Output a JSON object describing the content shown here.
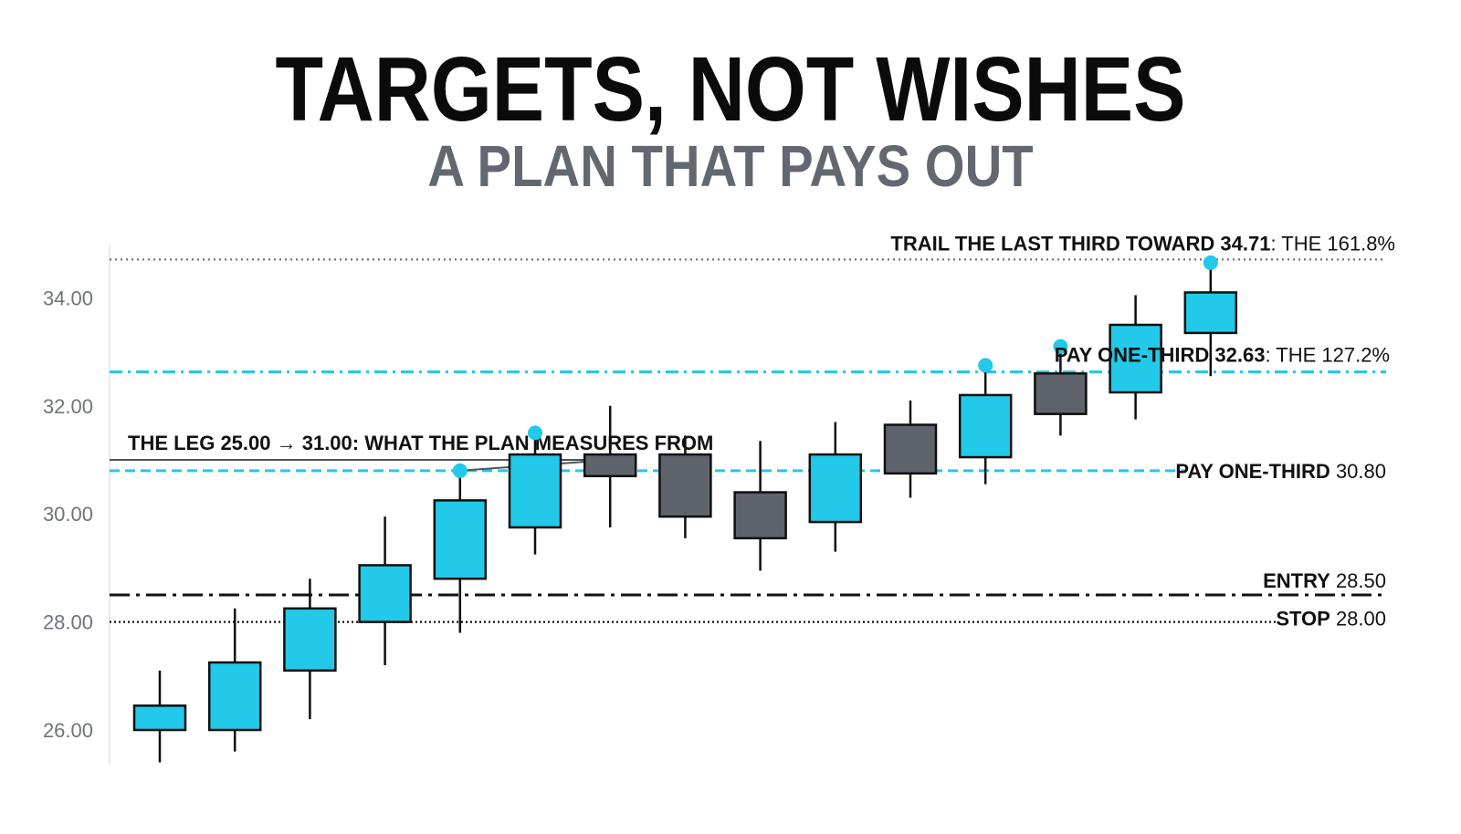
{
  "header": {
    "title": "TARGETS, NOT WISHES",
    "subtitle": "A PLAN THAT PAYS OUT"
  },
  "colors": {
    "up": "#22c9e8",
    "down": "#5f636b",
    "outline": "#0f0f0f",
    "target": "#22c9e8",
    "text": "#111111",
    "tick": "#6f737a"
  },
  "chart_data": {
    "type": "candlestick",
    "y_ticks": [
      "26.00",
      "28.00",
      "30.00",
      "32.00",
      "34.00"
    ],
    "ylim": [
      25.5,
      35.0
    ],
    "grid": false,
    "candles": [
      {
        "o": 26.0,
        "h": 27.1,
        "l": 25.4,
        "c": 26.45,
        "dir": "up"
      },
      {
        "o": 26.0,
        "h": 28.25,
        "l": 25.6,
        "c": 27.25,
        "dir": "up"
      },
      {
        "o": 27.1,
        "h": 28.8,
        "l": 26.2,
        "c": 28.25,
        "dir": "up"
      },
      {
        "o": 28.0,
        "h": 29.95,
        "l": 27.2,
        "c": 29.05,
        "dir": "up"
      },
      {
        "o": 28.8,
        "h": 30.8,
        "l": 27.8,
        "c": 30.25,
        "dir": "up"
      },
      {
        "o": 29.75,
        "h": 31.5,
        "l": 29.25,
        "c": 31.1,
        "dir": "up"
      },
      {
        "o": 31.1,
        "h": 32.0,
        "l": 29.75,
        "c": 30.7,
        "dir": "down"
      },
      {
        "o": 31.1,
        "h": 31.45,
        "l": 29.55,
        "c": 29.95,
        "dir": "down"
      },
      {
        "o": 30.4,
        "h": 31.35,
        "l": 28.95,
        "c": 29.55,
        "dir": "down"
      },
      {
        "o": 29.85,
        "h": 31.7,
        "l": 29.3,
        "c": 31.1,
        "dir": "up"
      },
      {
        "o": 31.65,
        "h": 32.1,
        "l": 30.3,
        "c": 30.75,
        "dir": "down"
      },
      {
        "o": 31.05,
        "h": 32.75,
        "l": 30.55,
        "c": 32.2,
        "dir": "up"
      },
      {
        "o": 32.6,
        "h": 33.1,
        "l": 31.45,
        "c": 31.85,
        "dir": "down"
      },
      {
        "o": 32.25,
        "h": 34.05,
        "l": 31.75,
        "c": 33.5,
        "dir": "up"
      },
      {
        "o": 33.35,
        "h": 34.65,
        "l": 32.55,
        "c": 34.1,
        "dir": "up"
      }
    ],
    "target_markers": [
      {
        "candle": 4,
        "price": 30.8
      },
      {
        "candle": 5,
        "price": 31.5
      },
      {
        "candle": 11,
        "price": 32.75
      },
      {
        "candle": 12,
        "price": 33.1
      },
      {
        "candle": 14,
        "price": 34.65
      }
    ],
    "levels": [
      {
        "id": "trail",
        "price": 34.71,
        "style": "dotted",
        "color": "#6f737a",
        "label_bold": "TRAIL THE LAST THIRD TOWARD 34.71",
        "label_rest": ": THE 161.8%"
      },
      {
        "id": "target2",
        "price": 32.63,
        "style": "dashdot",
        "color": "#22c9e8",
        "label_bold": "PAY ONE-THIRD 32.63",
        "label_rest": ": THE 127.2%"
      },
      {
        "id": "target1",
        "price": 30.8,
        "style": "dashed",
        "color": "#22c9e8",
        "label_bold": "PAY ONE-THIRD",
        "label_rest": " 30.80"
      },
      {
        "id": "entry",
        "price": 28.5,
        "style": "longdashdot",
        "color": "#111111",
        "label_bold": "ENTRY",
        "label_rest": " 28.50"
      },
      {
        "id": "stop",
        "price": 28.0,
        "style": "dotted",
        "color": "#111111",
        "label_bold": "STOP",
        "label_rest": " 28.00"
      }
    ],
    "leg": {
      "from": 25.0,
      "to": 31.0,
      "label": "THE LEG 25.00 → 31.00: WHAT THE PLAN MEASURES FROM"
    }
  }
}
